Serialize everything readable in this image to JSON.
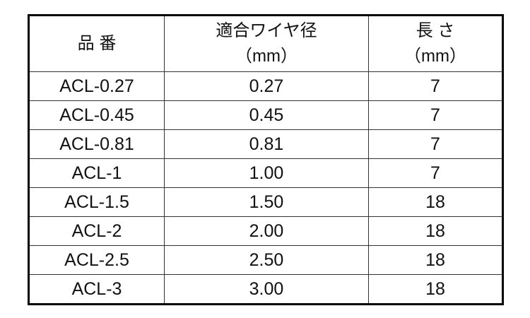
{
  "headers": {
    "part_number": "品 番",
    "wire_diameter": "適合ワイヤ径",
    "wire_diameter_unit": "（mm）",
    "length": "長 さ",
    "length_unit": "（mm）"
  },
  "rows": [
    {
      "part": "ACL-0.27",
      "diameter": "0.27",
      "length": "7"
    },
    {
      "part": "ACL-0.45",
      "diameter": "0.45",
      "length": "7"
    },
    {
      "part": "ACL-0.81",
      "diameter": "0.81",
      "length": "7"
    },
    {
      "part": "ACL-1",
      "diameter": "1.00",
      "length": "7"
    },
    {
      "part": "ACL-1.5",
      "diameter": "1.50",
      "length": "18"
    },
    {
      "part": "ACL-2",
      "diameter": "2.00",
      "length": "18"
    },
    {
      "part": "ACL-2.5",
      "diameter": "2.50",
      "length": "18"
    },
    {
      "part": "ACL-3",
      "diameter": "3.00",
      "length": "18"
    }
  ]
}
